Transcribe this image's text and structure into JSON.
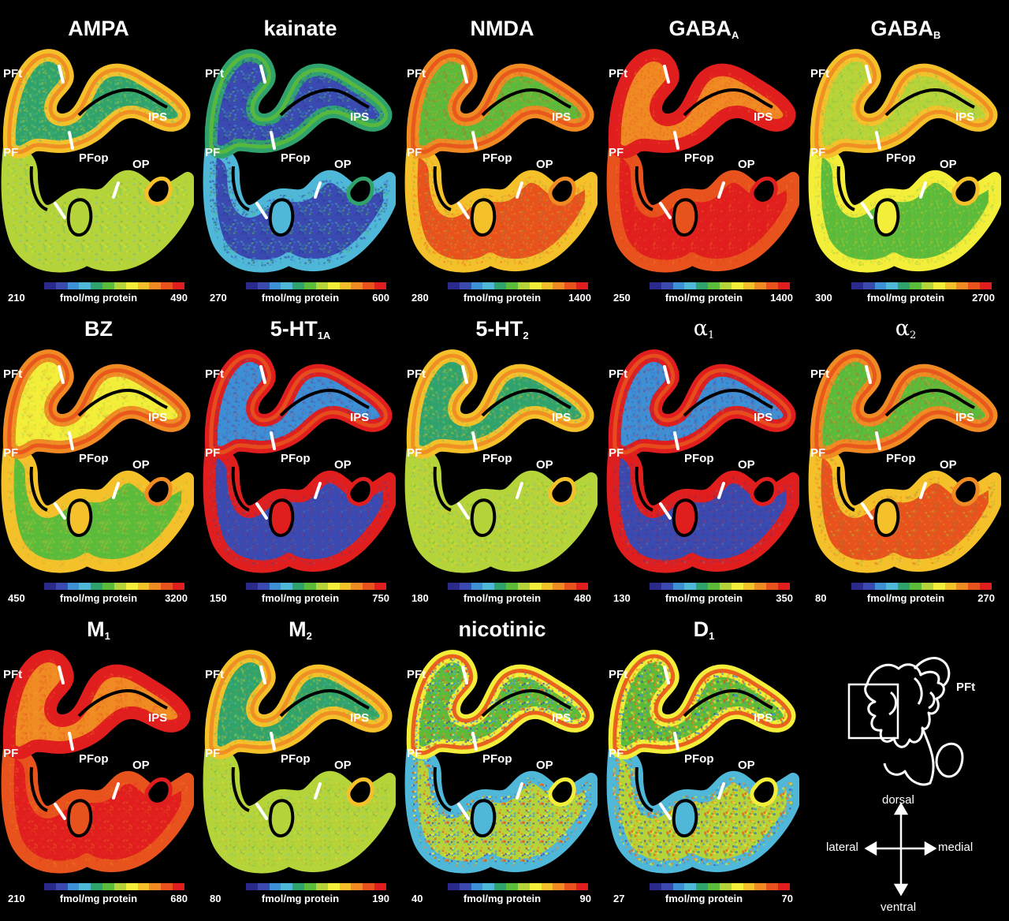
{
  "unit": "fmol/mg protein",
  "region_labels": {
    "pft": "PFt",
    "pf": "PF",
    "ips": "IPS",
    "pfop": "PFop",
    "op": "OP"
  },
  "panels": [
    {
      "title": "AMPA",
      "sub": "",
      "min": "210",
      "max": "490",
      "profile": "mid"
    },
    {
      "title": "kainate",
      "sub": "",
      "min": "270",
      "max": "600",
      "profile": "blue-noise"
    },
    {
      "title": "NMDA",
      "sub": "",
      "min": "280",
      "max": "1400",
      "profile": "mid-red"
    },
    {
      "title": "GABA",
      "sub": "A",
      "min": "250",
      "max": "1400",
      "profile": "red"
    },
    {
      "title": "GABA",
      "sub": "B",
      "min": "300",
      "max": "2700",
      "profile": "green-yellow"
    },
    {
      "title": "BZ",
      "sub": "",
      "min": "450",
      "max": "3200",
      "profile": "yellow"
    },
    {
      "title": "5-HT",
      "sub": "1A",
      "min": "150",
      "max": "750",
      "profile": "red-blue"
    },
    {
      "title": "5-HT",
      "sub": "2",
      "min": "180",
      "max": "480",
      "profile": "mid"
    },
    {
      "title": "α",
      "sub": "1",
      "min": "130",
      "max": "350",
      "profile": "red-blue"
    },
    {
      "title": "α",
      "sub": "2",
      "min": "80",
      "max": "270",
      "profile": "mid-red"
    },
    {
      "title": "M",
      "sub": "1",
      "min": "210",
      "max": "680",
      "profile": "red"
    },
    {
      "title": "M",
      "sub": "2",
      "min": "80",
      "max": "190",
      "profile": "mid"
    },
    {
      "title": "nicotinic",
      "sub": "",
      "min": "40",
      "max": "90",
      "profile": "noise"
    },
    {
      "title": "D",
      "sub": "1",
      "min": "27",
      "max": "70",
      "profile": "noise"
    }
  ],
  "colorbar": [
    "#2a2a8c",
    "#3a4ab0",
    "#3d8fd6",
    "#4fb8d8",
    "#2fa36b",
    "#5bbb3a",
    "#b5d43a",
    "#f2ee3a",
    "#f5c12a",
    "#f08a22",
    "#e8521c",
    "#e01e1e"
  ],
  "orientation": {
    "dorsal": "dorsal",
    "ventral": "ventral",
    "lateral": "lateral",
    "medial": "medial",
    "pft": "PFt"
  }
}
